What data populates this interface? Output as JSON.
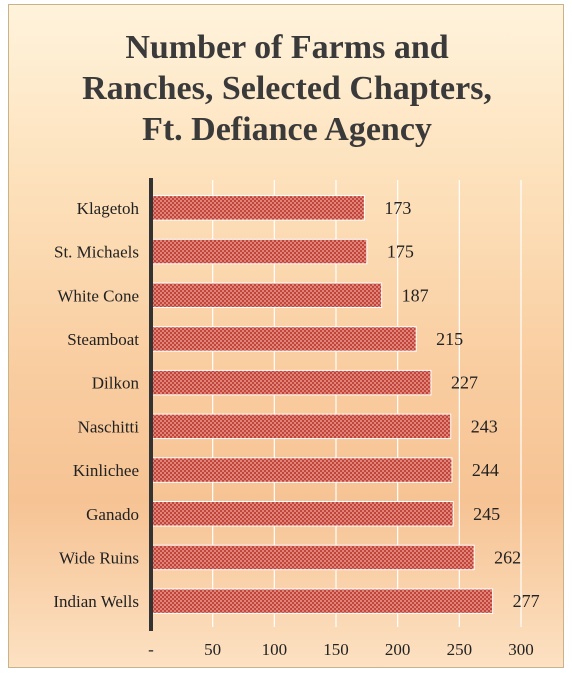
{
  "chart_data": {
    "type": "bar",
    "orientation": "horizontal",
    "title": "Number of Farms and Ranches, Selected Chapters, Ft. Defiance Agency",
    "title_lines": [
      "Number of Farms and",
      "Ranches, Selected Chapters,",
      "Ft. Defiance Agency"
    ],
    "categories": [
      "Klagetoh",
      "St. Michaels",
      "White Cone",
      "Steamboat",
      "Dilkon",
      "Naschitti",
      "Kinlichee",
      "Ganado",
      "Wide Ruins",
      "Indian Wells"
    ],
    "values": [
      173,
      175,
      187,
      215,
      227,
      243,
      244,
      245,
      262,
      277
    ],
    "xlim": [
      0,
      300
    ],
    "x_ticks": [
      0,
      50,
      100,
      150,
      200,
      250,
      300
    ],
    "x_tick_labels": [
      "-",
      "50",
      "100",
      "150",
      "200",
      "250",
      "300"
    ],
    "xlabel": "",
    "ylabel": "",
    "grid": "vertical",
    "legend": "none",
    "data_labels": true,
    "colors": {
      "bar": "#c0392b",
      "bar_pattern": "#e68a80",
      "grid": "#ffffff",
      "axis": "#333333",
      "text": "#222222"
    }
  }
}
